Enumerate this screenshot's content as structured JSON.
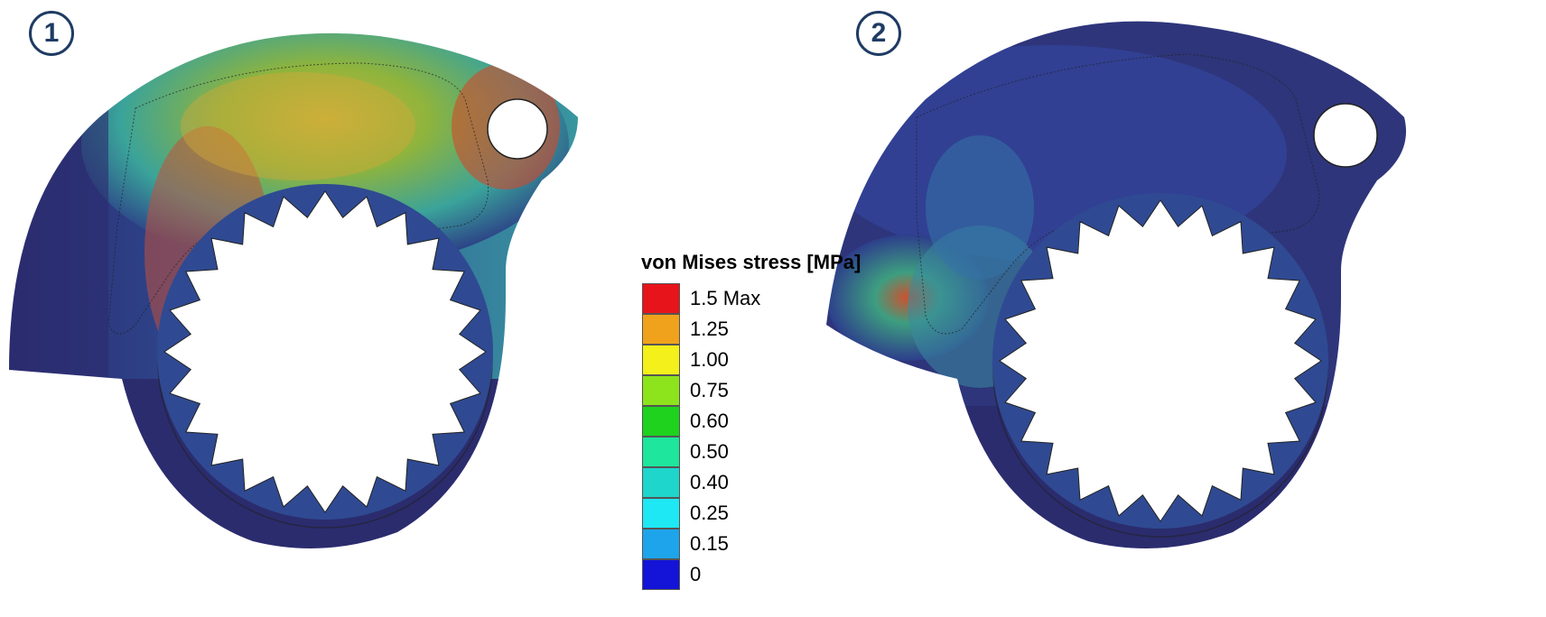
{
  "panels": [
    {
      "number": "1"
    },
    {
      "number": "2"
    }
  ],
  "legend": {
    "title": "von Mises stress [MPa]",
    "entries": [
      {
        "label": "1.5 Max",
        "color": "#e8141b"
      },
      {
        "label": "1.25",
        "color": "#f0a21c"
      },
      {
        "label": "1.00",
        "color": "#f4f01c"
      },
      {
        "label": "0.75",
        "color": "#8ee41c"
      },
      {
        "label": "0.60",
        "color": "#1ed21e"
      },
      {
        "label": "0.50",
        "color": "#1ee69c"
      },
      {
        "label": "0.40",
        "color": "#1ed6cc"
      },
      {
        "label": "0.25",
        "color": "#1ee8f4"
      },
      {
        "label": "0.15",
        "color": "#1ea4ea"
      },
      {
        "label": "0",
        "color": "#1414d8"
      }
    ]
  },
  "colors": {
    "low_stress": "#2b2c6e",
    "badge_border": "#1f3b63"
  }
}
